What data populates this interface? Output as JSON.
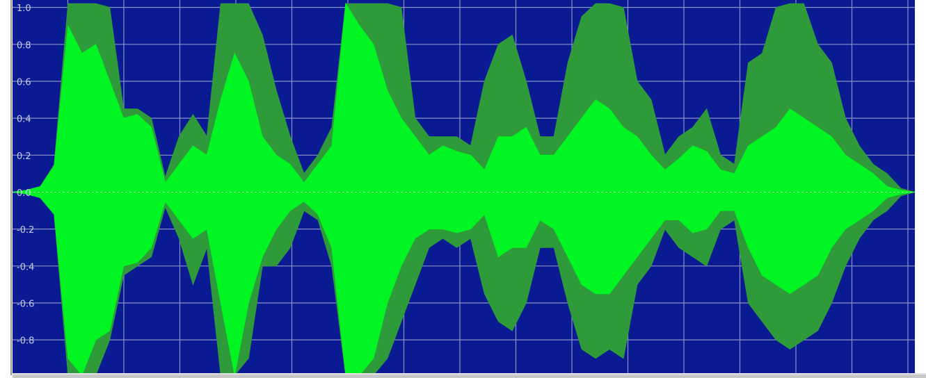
{
  "chart_data": {
    "type": "area",
    "ylim": [
      -0.98,
      1.04
    ],
    "yticks": [
      {
        "value": 1,
        "label": "1.0"
      },
      0.8,
      0.6,
      0.4,
      0.2,
      {
        "value": 0,
        "label": "0.0"
      },
      -0.2,
      -0.4,
      -0.6,
      -0.8
    ],
    "grid": true,
    "background": "#0a1a92",
    "series": [
      {
        "color": "#2f9a3a",
        "values": [
          0,
          0.01,
          0.03,
          0.15,
          1.02,
          1.02,
          1.02,
          1.0,
          0.45,
          0.45,
          0.4,
          0.08,
          0.3,
          0.42,
          0.3,
          1.02,
          1.02,
          1.02,
          0.85,
          0.55,
          0.3,
          0.1,
          0.2,
          0.35,
          1.02,
          1.02,
          1.02,
          1.02,
          1.0,
          0.4,
          0.3,
          0.3,
          0.3,
          0.25,
          0.6,
          0.8,
          0.85,
          0.6,
          0.3,
          0.3,
          0.7,
          0.95,
          1.02,
          1.02,
          1.0,
          0.6,
          0.5,
          0.2,
          0.3,
          0.35,
          0.45,
          0.2,
          0.15,
          0.7,
          0.75,
          1.0,
          1.02,
          1.02,
          0.8,
          0.7,
          0.4,
          0.25,
          0.15,
          0.1,
          0.02,
          0
        ]
      },
      {
        "color": "#2f9a3a",
        "values": [
          0,
          -0.01,
          -0.03,
          -0.12,
          -0.99,
          -0.99,
          -0.99,
          -0.8,
          -0.45,
          -0.4,
          -0.35,
          -0.08,
          -0.25,
          -0.5,
          -0.3,
          -0.99,
          -0.99,
          -0.9,
          -0.4,
          -0.4,
          -0.3,
          -0.1,
          -0.15,
          -0.4,
          -0.99,
          -0.99,
          -0.99,
          -0.9,
          -0.7,
          -0.5,
          -0.3,
          -0.25,
          -0.3,
          -0.25,
          -0.55,
          -0.7,
          -0.75,
          -0.6,
          -0.3,
          -0.3,
          -0.6,
          -0.85,
          -0.9,
          -0.85,
          -0.9,
          -0.5,
          -0.4,
          -0.2,
          -0.3,
          -0.35,
          -0.4,
          -0.2,
          -0.15,
          -0.6,
          -0.7,
          -0.8,
          -0.85,
          -0.8,
          -0.75,
          -0.6,
          -0.4,
          -0.25,
          -0.15,
          -0.1,
          -0.02,
          0
        ]
      },
      {
        "color": "#00f522",
        "values": [
          0,
          0.01,
          0.03,
          0.14,
          0.9,
          0.75,
          0.8,
          0.6,
          0.4,
          0.42,
          0.35,
          0.05,
          0.15,
          0.25,
          0.2,
          0.5,
          0.75,
          0.6,
          0.3,
          0.2,
          0.15,
          0.05,
          0.15,
          0.25,
          1.02,
          0.9,
          0.8,
          0.55,
          0.4,
          0.3,
          0.2,
          0.25,
          0.22,
          0.2,
          0.12,
          0.3,
          0.3,
          0.35,
          0.2,
          0.2,
          0.3,
          0.4,
          0.5,
          0.45,
          0.35,
          0.3,
          0.2,
          0.12,
          0.18,
          0.25,
          0.22,
          0.12,
          0.1,
          0.25,
          0.3,
          0.35,
          0.45,
          0.4,
          0.35,
          0.3,
          0.2,
          0.15,
          0.1,
          0.03,
          0.01,
          0
        ]
      },
      {
        "color": "#00f522",
        "values": [
          0,
          -0.01,
          -0.03,
          -0.12,
          -0.9,
          -0.99,
          -0.8,
          -0.75,
          -0.4,
          -0.38,
          -0.3,
          -0.05,
          -0.15,
          -0.25,
          -0.2,
          -0.6,
          -0.99,
          -0.6,
          -0.35,
          -0.2,
          -0.1,
          -0.05,
          -0.12,
          -0.3,
          -0.99,
          -0.99,
          -0.9,
          -0.6,
          -0.4,
          -0.25,
          -0.2,
          -0.2,
          -0.22,
          -0.2,
          -0.12,
          -0.35,
          -0.3,
          -0.3,
          -0.15,
          -0.2,
          -0.35,
          -0.5,
          -0.55,
          -0.55,
          -0.45,
          -0.35,
          -0.25,
          -0.15,
          -0.15,
          -0.22,
          -0.2,
          -0.1,
          -0.1,
          -0.3,
          -0.45,
          -0.5,
          -0.55,
          -0.5,
          -0.45,
          -0.3,
          -0.2,
          -0.15,
          -0.1,
          -0.03,
          -0.01,
          0
        ]
      }
    ]
  }
}
